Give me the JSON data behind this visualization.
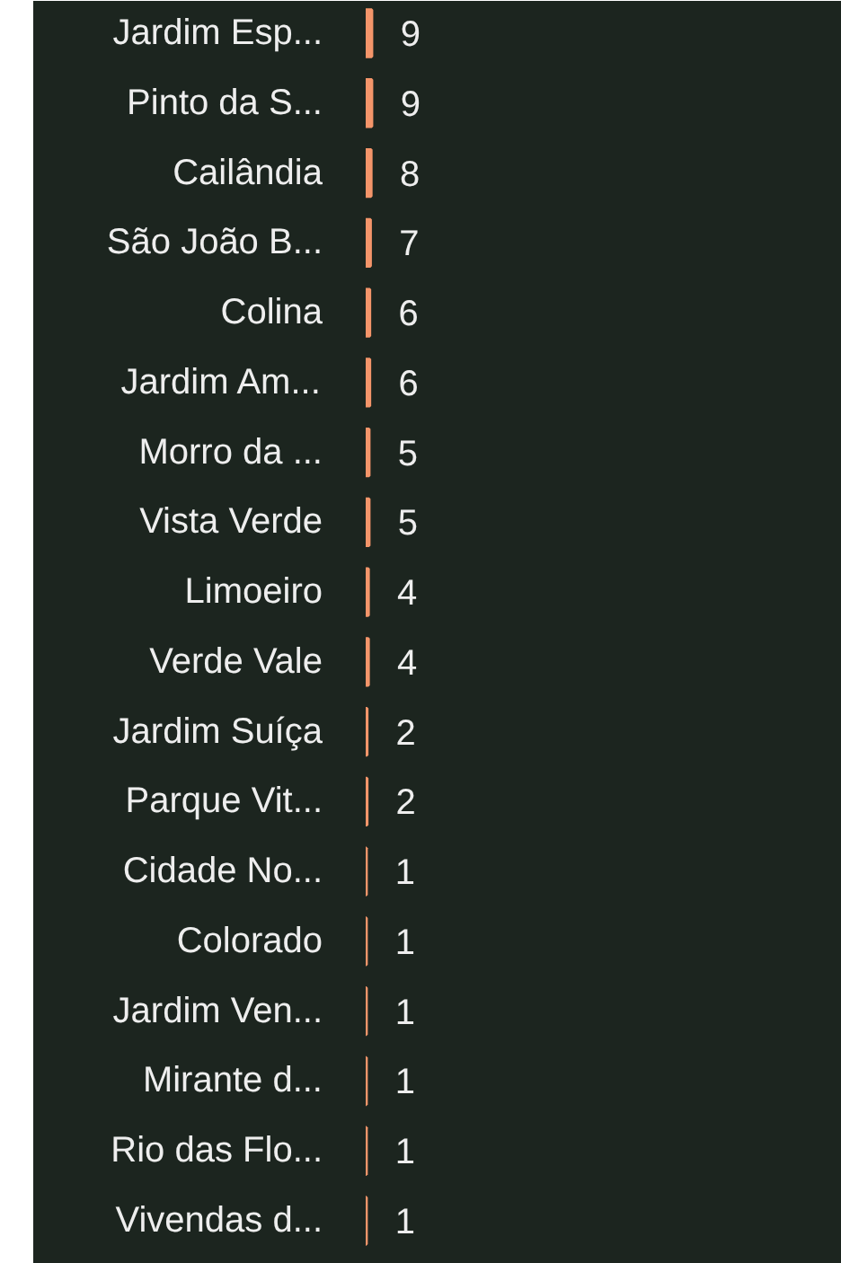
{
  "chart_data": {
    "type": "bar",
    "orientation": "horizontal",
    "categories": [
      "Jardim Esp...",
      "Pinto da S...",
      "Cailândia",
      "São João B...",
      "Colina",
      "Jardim Am...",
      "Morro da ...",
      "Vista Verde",
      "Limoeiro",
      "Verde Vale",
      "Jardim Suíça",
      "Parque Vit...",
      "Cidade No...",
      "Colorado",
      "Jardim Ven...",
      "Mirante d...",
      "Rio das Flo...",
      "Vivendas d..."
    ],
    "values": [
      9,
      9,
      8,
      7,
      6,
      6,
      5,
      5,
      4,
      4,
      2,
      2,
      1,
      1,
      1,
      1,
      1,
      1
    ],
    "color": "#f4956a",
    "xlim": [
      0,
      700
    ],
    "data_labels": true,
    "tick_labels": "y"
  }
}
